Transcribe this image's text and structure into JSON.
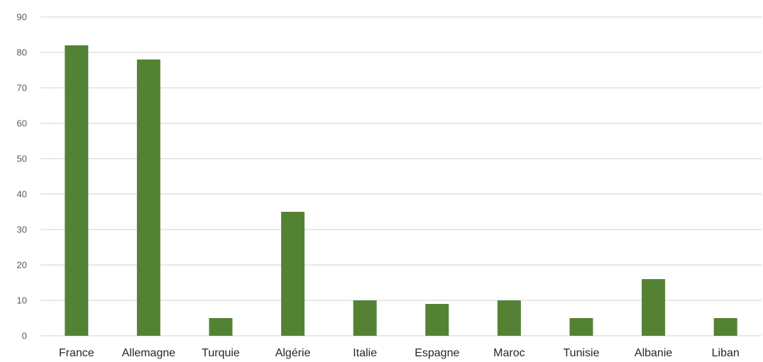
{
  "colors": {
    "bar": "#548235",
    "grid": "#d9d9d9",
    "tick_text": "#595959",
    "category_text": "#262626"
  },
  "chart_data": {
    "type": "bar",
    "title": "",
    "xlabel": "",
    "ylabel": "",
    "ylim": [
      0,
      90
    ],
    "yticks": [
      0,
      10,
      20,
      30,
      40,
      50,
      60,
      70,
      80,
      90
    ],
    "grid": true,
    "legend": "none",
    "categories": [
      "France",
      "Allemagne",
      "Turquie",
      "Algérie",
      "Italie",
      "Espagne",
      "Maroc",
      "Tunisie",
      "Albanie",
      "Liban"
    ],
    "values": [
      82,
      78,
      5,
      35,
      10,
      9,
      10,
      5,
      16,
      5
    ]
  }
}
